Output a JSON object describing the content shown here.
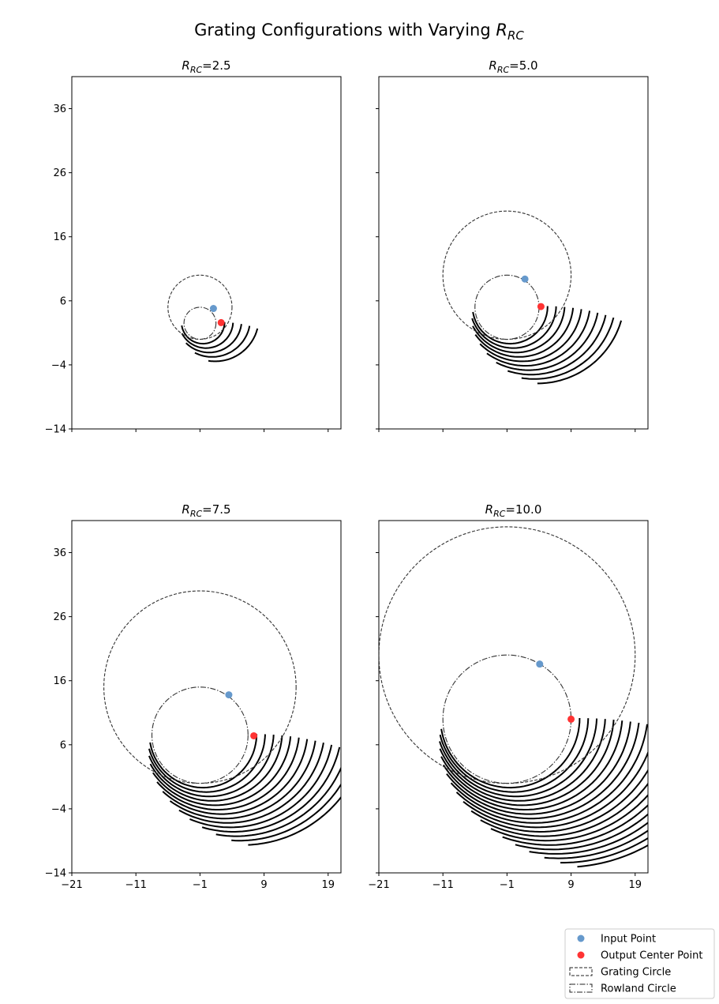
{
  "figure": {
    "title_prefix": "Grating Configurations with Varying ",
    "title_symbol": "R",
    "title_subscript": "RC"
  },
  "colors": {
    "input_point": "#6699cc",
    "output_point": "#ff3333",
    "grating_arcs": "#000000",
    "circles": "#333333"
  },
  "legend": {
    "placement": "bottom-right",
    "items": [
      {
        "label": "Input Point",
        "kind": "point",
        "color": "#6699cc"
      },
      {
        "label": "Output Center Point",
        "kind": "point",
        "color": "#ff3333"
      },
      {
        "label": "Grating Circle",
        "kind": "dashed-box"
      },
      {
        "label": "Rowland Circle",
        "kind": "dashdot-box"
      }
    ]
  },
  "chart_data": [
    {
      "type": "scatter",
      "title_symbol": "R",
      "title_subscript": "RC",
      "title_value": "=2.5",
      "xlim": [
        -21,
        21
      ],
      "ylim": [
        -14,
        41
      ],
      "xticks": [
        -21,
        -11,
        -1,
        9,
        19
      ],
      "yticks": [
        -14,
        -4,
        6,
        16,
        26,
        36
      ],
      "show_xticklabels": false,
      "show_yticklabels": true,
      "rowland_circle": {
        "center": [
          -1,
          2.5
        ],
        "radius": 2.5
      },
      "grating_circle": {
        "center": [
          -1,
          5
        ],
        "radius": 5
      },
      "input_point": [
        1.1,
        4.8
      ],
      "output_point": [
        2.3,
        2.6
      ],
      "arc_count": 5
    },
    {
      "type": "scatter",
      "title_symbol": "R",
      "title_subscript": "RC",
      "title_value": "=5.0",
      "xlim": [
        -21,
        21
      ],
      "ylim": [
        -14,
        41
      ],
      "xticks": [
        -21,
        -11,
        -1,
        9,
        19
      ],
      "yticks": [
        -14,
        -4,
        6,
        16,
        26,
        36
      ],
      "show_xticklabels": false,
      "show_yticklabels": false,
      "rowland_circle": {
        "center": [
          -1,
          5
        ],
        "radius": 5
      },
      "grating_circle": {
        "center": [
          -1,
          10
        ],
        "radius": 10
      },
      "input_point": [
        1.8,
        9.4
      ],
      "output_point": [
        4.3,
        5.1
      ],
      "arc_count": 10
    },
    {
      "type": "scatter",
      "title_symbol": "R",
      "title_subscript": "RC",
      "title_value": "=7.5",
      "xlim": [
        -21,
        21
      ],
      "ylim": [
        -14,
        41
      ],
      "xticks": [
        -21,
        -11,
        -1,
        9,
        19
      ],
      "yticks": [
        -14,
        -4,
        6,
        16,
        26,
        36
      ],
      "show_xticklabels": true,
      "show_yticklabels": true,
      "rowland_circle": {
        "center": [
          -1,
          7.5
        ],
        "radius": 7.5
      },
      "grating_circle": {
        "center": [
          -1,
          15
        ],
        "radius": 15
      },
      "input_point": [
        3.5,
        13.8
      ],
      "output_point": [
        7.4,
        7.4
      ],
      "arc_count": 14
    },
    {
      "type": "scatter",
      "title_symbol": "R",
      "title_subscript": "RC",
      "title_value": "=10.0",
      "xlim": [
        -21,
        21
      ],
      "ylim": [
        -14,
        41
      ],
      "xticks": [
        -21,
        -11,
        -1,
        9,
        19
      ],
      "yticks": [
        -14,
        -4,
        6,
        16,
        26,
        36
      ],
      "show_xticklabels": true,
      "show_yticklabels": false,
      "rowland_circle": {
        "center": [
          -1,
          10
        ],
        "radius": 10
      },
      "grating_circle": {
        "center": [
          -1,
          20
        ],
        "radius": 20
      },
      "input_point": [
        4.1,
        18.6
      ],
      "output_point": [
        9.0,
        10.0
      ],
      "arc_count": 19
    }
  ]
}
